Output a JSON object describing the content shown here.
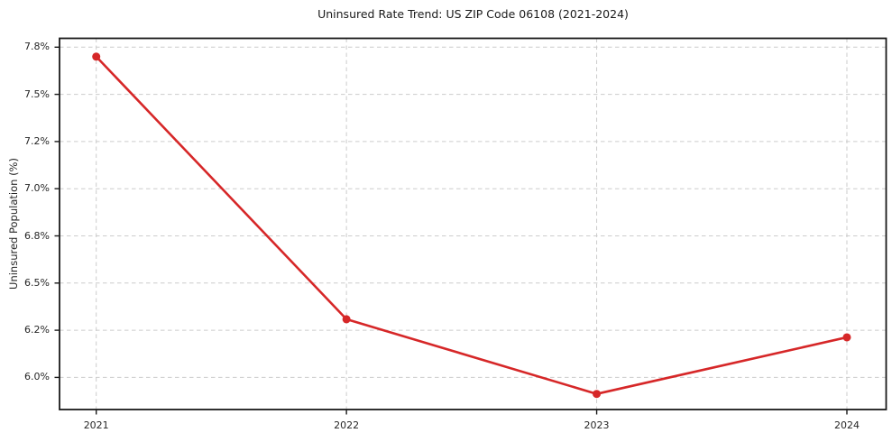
{
  "chart_data": {
    "type": "line",
    "title": "Uninsured Rate Trend: US ZIP Code 06108 (2021-2024)",
    "xlabel": "",
    "ylabel": "Uninsured Population (%)",
    "unit": "%",
    "x": [
      2021,
      2022,
      2023,
      2024
    ],
    "x_tick_labels": [
      "2021",
      "2022",
      "2023",
      "2024"
    ],
    "values": [
      7.74,
      6.27,
      5.93,
      6.17
    ],
    "y_tick_labels": [
      "7.8%",
      "7.5%",
      "7.2%",
      "7.0%",
      "6.8%",
      "6.5%",
      "6.2%",
      "6.0%"
    ],
    "y_tick_values": [
      7.8,
      7.5,
      7.2,
      7.0,
      6.8,
      6.5,
      6.2,
      6.0
    ],
    "ylim": [
      5.86,
      7.86
    ],
    "grid": "dashed",
    "legend": "none",
    "marker": "circle",
    "colors": {
      "line": "#d62728",
      "marker": "#d62728",
      "grid": "#cccccc",
      "axis": "#1a1a1a",
      "tick_text": "#262626",
      "background": "#ffffff"
    }
  }
}
